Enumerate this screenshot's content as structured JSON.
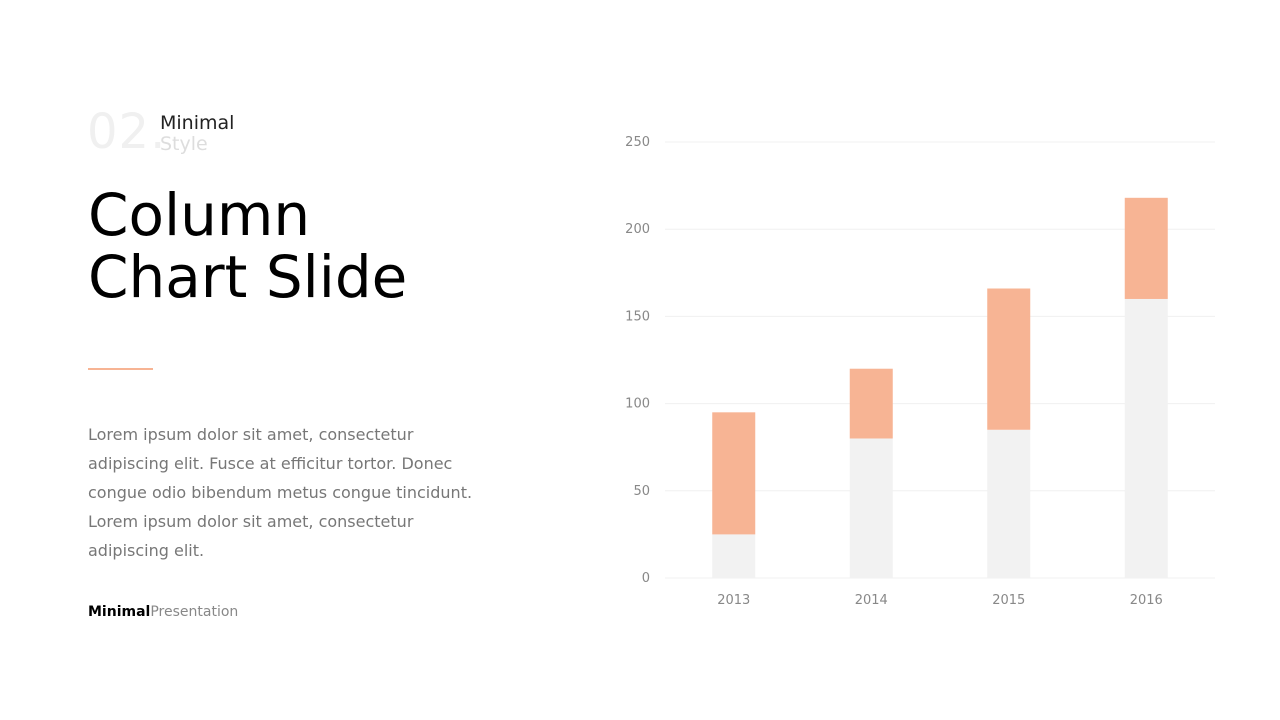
{
  "slide": {
    "number": "02.",
    "subtitle_line1": "Minimal",
    "subtitle_line2": "Style",
    "title": "Column\nChart Slide",
    "body": "Lorem ipsum dolor sit amet, consectetur adipiscing elit. Fusce at efficitur tortor. Donec congue odio bibendum metus congue tincidunt. Lorem ipsum dolor sit amet, consectetur adipiscing elit.",
    "footer_bold": "Minimal",
    "footer_light": "Presentation",
    "accent_color": "#f7b494"
  },
  "chart_data": {
    "type": "bar",
    "stacked": true,
    "categories": [
      "2013",
      "2014",
      "2015",
      "2016"
    ],
    "series": [
      {
        "values": [
          25,
          80,
          85,
          160
        ],
        "color": "#f2f2f2"
      },
      {
        "values": [
          70,
          40,
          81,
          58
        ],
        "color": "#f7b494"
      }
    ],
    "ylim": [
      0,
      250
    ],
    "yticks": [
      0,
      50,
      100,
      150,
      200,
      250
    ],
    "grid": true,
    "legend": "none"
  }
}
